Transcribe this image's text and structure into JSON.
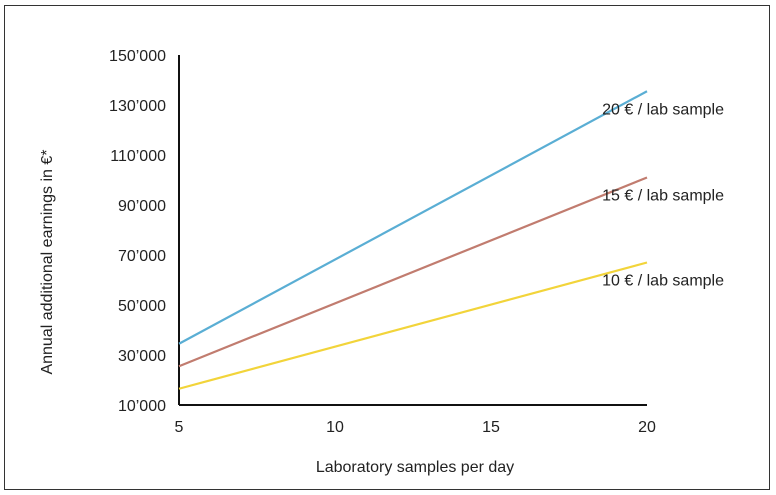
{
  "chart_data": {
    "type": "line",
    "xlabel": "Laboratory samples per day",
    "ylabel": "Annual additional earnings in €*",
    "xlim": [
      5,
      20
    ],
    "ylim": [
      10000,
      150000
    ],
    "x_ticks": [
      5,
      10,
      15,
      20
    ],
    "x_tick_labels": [
      "5",
      "10",
      "15",
      "20"
    ],
    "y_ticks": [
      10000,
      30000,
      50000,
      70000,
      90000,
      110000,
      130000,
      150000
    ],
    "y_tick_labels": [
      "10’000",
      "30’000",
      "50’000",
      "70’000",
      "90’000",
      "110’000",
      "130’000",
      "150’000"
    ],
    "grid": false,
    "series": [
      {
        "name": "20 € / lab sample",
        "color": "#5aaed4",
        "x": [
          5,
          20
        ],
        "y": [
          34500,
          135500
        ]
      },
      {
        "name": "15 € / lab sample",
        "color": "#c17c6f",
        "x": [
          5,
          20
        ],
        "y": [
          25500,
          101000
        ]
      },
      {
        "name": "10 € / lab sample",
        "color": "#f2d43a",
        "x": [
          5,
          20
        ],
        "y": [
          16500,
          67000
        ]
      }
    ]
  }
}
